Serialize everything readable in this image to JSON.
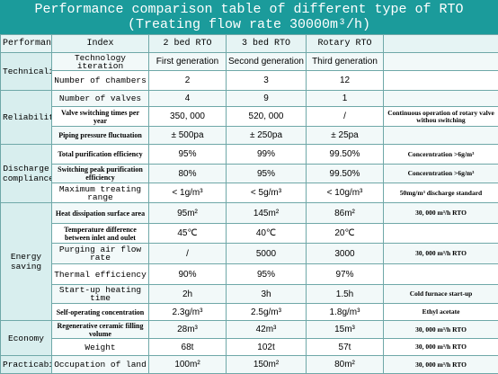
{
  "title": "Performance comparison table of different type of RTO",
  "subtitle": "(Treating flow rate 30000m³/h)",
  "header": [
    "Performance",
    "Index",
    "2 bed RTO",
    "3 bed RTO",
    "Rotary RTO"
  ],
  "groups": [
    {
      "name": "Technicality",
      "rows": [
        [
          "Technology iteration",
          "First generation",
          "Second generation",
          "Third generation"
        ],
        [
          "Number of chambers",
          "2",
          "3",
          "12"
        ]
      ]
    },
    {
      "name": "Reliability",
      "rows": [
        [
          "Number of valves",
          "4",
          "9",
          "1"
        ],
        [
          "Valve switching times per year",
          "350, 000",
          "520, 000",
          "/",
          "Continuous operation of rotary valve withou switching"
        ],
        [
          "Piping pressure fluctuation",
          "± 500pa",
          "± 250pa",
          "± 25pa"
        ]
      ]
    },
    {
      "name": "Discharge compliance",
      "rows": [
        [
          "Total purification efficiency",
          "95%",
          "99%",
          "99.50%",
          "Concerntration >6g/m³"
        ],
        [
          "Switching peak purification efficiency",
          "80%",
          "95%",
          "99.50%",
          "Concerntration >6g/m³"
        ],
        [
          "Maximum treating range",
          "< 1g/m³",
          "< 5g/m³",
          "< 10g/m³",
          "50mg/m³ discharge standard"
        ]
      ]
    },
    {
      "name": "Energy saving",
      "rows": [
        [
          "Heat dissipation surface area",
          "95m²",
          "145m²",
          "86m²",
          "30, 000 m³/h RTO"
        ],
        [
          "Temperature difference between inlet and oulet",
          "45℃",
          "40℃",
          "20℃"
        ],
        [
          "Purging air flow rate",
          "/",
          "5000",
          "3000",
          "30, 000 m³/h RTO"
        ],
        [
          "Thermal efficiency",
          "90%",
          "95%",
          "97%"
        ],
        [
          "Start-up heating time",
          "2h",
          "3h",
          "1.5h",
          "Cold furnace start-up"
        ],
        [
          "Self-operating concentration",
          "2.3g/m³",
          "2.5g/m³",
          "1.8g/m³",
          "Ethyl acetate"
        ]
      ]
    },
    {
      "name": "Economy",
      "rows": [
        [
          "Regenerative ceramic filling volume",
          "28m³",
          "42m³",
          "15m³",
          "30, 000 m³/h RTO"
        ],
        [
          "Weight",
          "68t",
          "102t",
          "57t",
          "30, 000 m³/h RTO"
        ]
      ]
    },
    {
      "name": "Practicability",
      "rows": [
        [
          "Occupation of land",
          "100m²",
          "150m²",
          "80m²",
          "30, 000 m³/h RTO"
        ]
      ]
    }
  ]
}
